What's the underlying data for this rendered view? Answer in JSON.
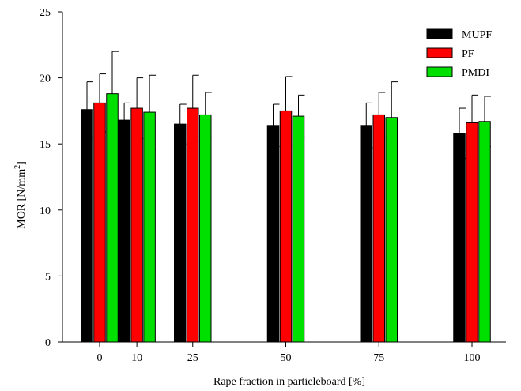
{
  "chart_data": {
    "type": "bar",
    "title": "",
    "xlabel": "Rape fraction in particleboard [%]",
    "ylabel": {
      "main": "MOR [N/mm",
      "sup": "2",
      "end": "]"
    },
    "ylim": [
      0,
      25
    ],
    "yticks": [
      0,
      5,
      10,
      15,
      20,
      25
    ],
    "categories": [
      "0",
      "10",
      "25",
      "50",
      "75",
      "100"
    ],
    "category_x_values": [
      0,
      10,
      25,
      50,
      75,
      100
    ],
    "legend_placement": "top-right",
    "grid": false,
    "series": [
      {
        "name": "MUPF",
        "color": "#000000",
        "values": [
          17.6,
          16.8,
          16.5,
          16.4,
          16.4,
          15.8
        ],
        "error": [
          2.1,
          1.3,
          1.5,
          1.6,
          1.7,
          1.9
        ]
      },
      {
        "name": "PF",
        "color": "#ff0000",
        "values": [
          18.1,
          17.7,
          17.7,
          17.5,
          17.2,
          16.6
        ],
        "error": [
          2.2,
          2.3,
          2.5,
          2.6,
          1.7,
          2.1
        ]
      },
      {
        "name": "PMDI",
        "color": "#00e000",
        "values": [
          18.8,
          17.4,
          17.2,
          17.1,
          17.0,
          16.7
        ],
        "error": [
          3.2,
          2.8,
          1.7,
          1.6,
          2.7,
          1.9
        ]
      }
    ]
  }
}
